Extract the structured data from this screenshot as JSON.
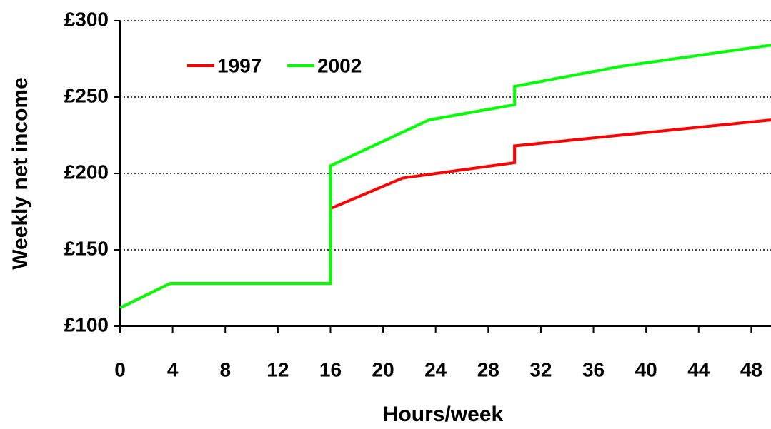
{
  "chart_data": {
    "type": "line",
    "x_label": "Hours/week",
    "y_label": "Weekly net income",
    "xlim": [
      0,
      49.5
    ],
    "xticks": [
      0,
      4,
      8,
      12,
      16,
      20,
      24,
      28,
      32,
      36,
      40,
      44,
      48
    ],
    "ylim": [
      100,
      300
    ],
    "yticks": [
      {
        "value": 100,
        "label": "£100"
      },
      {
        "value": 150,
        "label": "£150"
      },
      {
        "value": 200,
        "label": "£200"
      },
      {
        "value": 250,
        "label": "£250"
      },
      {
        "value": 300,
        "label": "£300"
      }
    ],
    "grid": true,
    "legend": "upper left",
    "series": [
      {
        "name": "1997",
        "color": "#ff0000",
        "x": [
          0,
          3.8,
          16,
          16,
          21.5,
          30,
          30,
          49.5
        ],
        "values": [
          112,
          128,
          128,
          177,
          197,
          207,
          218,
          235
        ]
      },
      {
        "name": "2002",
        "color": "#00ff00",
        "x": [
          0,
          3.8,
          16,
          16,
          21.5,
          23.5,
          30,
          30,
          38,
          49.5
        ],
        "values": [
          112,
          128,
          128,
          205,
          227,
          235,
          245,
          257,
          270,
          284
        ]
      }
    ]
  }
}
